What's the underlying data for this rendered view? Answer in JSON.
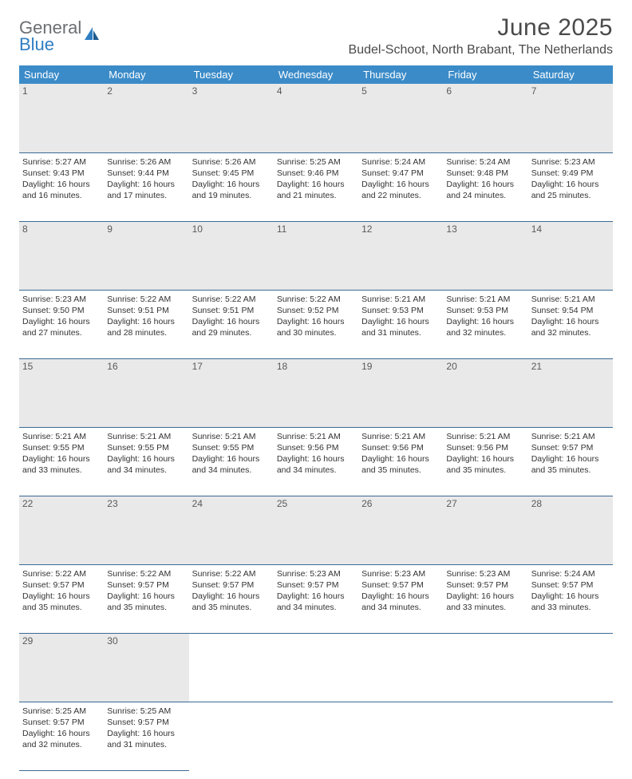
{
  "brand": {
    "line1": "General",
    "line2": "Blue"
  },
  "title": "June 2025",
  "location": "Budel-Schoot, North Brabant, The Netherlands",
  "colors": {
    "header_bg": "#3b8bc8",
    "header_text": "#ffffff",
    "daynum_bg": "#e9e9e9",
    "daynum_text": "#5a5a5a",
    "body_text": "#333333",
    "rule": "#3b6a94",
    "logo_gray": "#6b6f73",
    "logo_blue": "#2f7ec2"
  },
  "weekdays": [
    "Sunday",
    "Monday",
    "Tuesday",
    "Wednesday",
    "Thursday",
    "Friday",
    "Saturday"
  ],
  "weeks": [
    [
      {
        "n": "1",
        "sr": "5:27 AM",
        "ss": "9:43 PM",
        "dl": "16 hours and 16 minutes."
      },
      {
        "n": "2",
        "sr": "5:26 AM",
        "ss": "9:44 PM",
        "dl": "16 hours and 17 minutes."
      },
      {
        "n": "3",
        "sr": "5:26 AM",
        "ss": "9:45 PM",
        "dl": "16 hours and 19 minutes."
      },
      {
        "n": "4",
        "sr": "5:25 AM",
        "ss": "9:46 PM",
        "dl": "16 hours and 21 minutes."
      },
      {
        "n": "5",
        "sr": "5:24 AM",
        "ss": "9:47 PM",
        "dl": "16 hours and 22 minutes."
      },
      {
        "n": "6",
        "sr": "5:24 AM",
        "ss": "9:48 PM",
        "dl": "16 hours and 24 minutes."
      },
      {
        "n": "7",
        "sr": "5:23 AM",
        "ss": "9:49 PM",
        "dl": "16 hours and 25 minutes."
      }
    ],
    [
      {
        "n": "8",
        "sr": "5:23 AM",
        "ss": "9:50 PM",
        "dl": "16 hours and 27 minutes."
      },
      {
        "n": "9",
        "sr": "5:22 AM",
        "ss": "9:51 PM",
        "dl": "16 hours and 28 minutes."
      },
      {
        "n": "10",
        "sr": "5:22 AM",
        "ss": "9:51 PM",
        "dl": "16 hours and 29 minutes."
      },
      {
        "n": "11",
        "sr": "5:22 AM",
        "ss": "9:52 PM",
        "dl": "16 hours and 30 minutes."
      },
      {
        "n": "12",
        "sr": "5:21 AM",
        "ss": "9:53 PM",
        "dl": "16 hours and 31 minutes."
      },
      {
        "n": "13",
        "sr": "5:21 AM",
        "ss": "9:53 PM",
        "dl": "16 hours and 32 minutes."
      },
      {
        "n": "14",
        "sr": "5:21 AM",
        "ss": "9:54 PM",
        "dl": "16 hours and 32 minutes."
      }
    ],
    [
      {
        "n": "15",
        "sr": "5:21 AM",
        "ss": "9:55 PM",
        "dl": "16 hours and 33 minutes."
      },
      {
        "n": "16",
        "sr": "5:21 AM",
        "ss": "9:55 PM",
        "dl": "16 hours and 34 minutes."
      },
      {
        "n": "17",
        "sr": "5:21 AM",
        "ss": "9:55 PM",
        "dl": "16 hours and 34 minutes."
      },
      {
        "n": "18",
        "sr": "5:21 AM",
        "ss": "9:56 PM",
        "dl": "16 hours and 34 minutes."
      },
      {
        "n": "19",
        "sr": "5:21 AM",
        "ss": "9:56 PM",
        "dl": "16 hours and 35 minutes."
      },
      {
        "n": "20",
        "sr": "5:21 AM",
        "ss": "9:56 PM",
        "dl": "16 hours and 35 minutes."
      },
      {
        "n": "21",
        "sr": "5:21 AM",
        "ss": "9:57 PM",
        "dl": "16 hours and 35 minutes."
      }
    ],
    [
      {
        "n": "22",
        "sr": "5:22 AM",
        "ss": "9:57 PM",
        "dl": "16 hours and 35 minutes."
      },
      {
        "n": "23",
        "sr": "5:22 AM",
        "ss": "9:57 PM",
        "dl": "16 hours and 35 minutes."
      },
      {
        "n": "24",
        "sr": "5:22 AM",
        "ss": "9:57 PM",
        "dl": "16 hours and 35 minutes."
      },
      {
        "n": "25",
        "sr": "5:23 AM",
        "ss": "9:57 PM",
        "dl": "16 hours and 34 minutes."
      },
      {
        "n": "26",
        "sr": "5:23 AM",
        "ss": "9:57 PM",
        "dl": "16 hours and 34 minutes."
      },
      {
        "n": "27",
        "sr": "5:23 AM",
        "ss": "9:57 PM",
        "dl": "16 hours and 33 minutes."
      },
      {
        "n": "28",
        "sr": "5:24 AM",
        "ss": "9:57 PM",
        "dl": "16 hours and 33 minutes."
      }
    ],
    [
      {
        "n": "29",
        "sr": "5:25 AM",
        "ss": "9:57 PM",
        "dl": "16 hours and 32 minutes."
      },
      {
        "n": "30",
        "sr": "5:25 AM",
        "ss": "9:57 PM",
        "dl": "16 hours and 31 minutes."
      },
      null,
      null,
      null,
      null,
      null
    ]
  ],
  "labels": {
    "sunrise": "Sunrise:",
    "sunset": "Sunset:",
    "daylight": "Daylight:"
  }
}
